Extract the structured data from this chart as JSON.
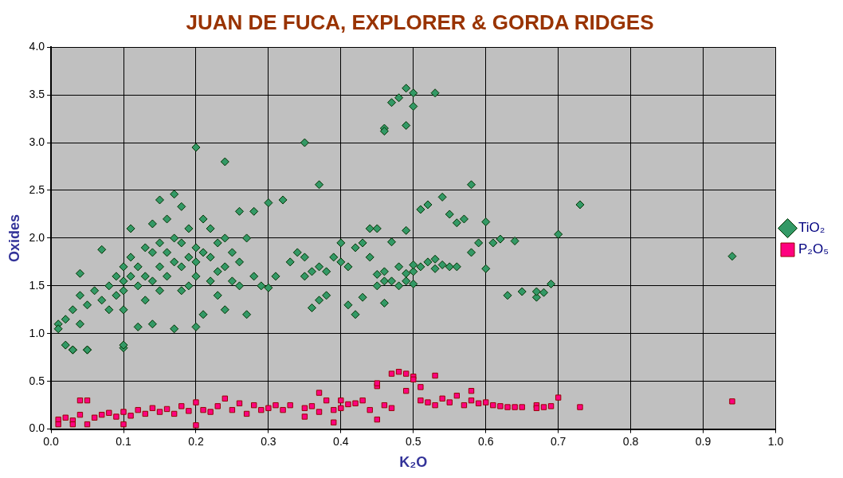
{
  "chart_data": {
    "type": "scatter",
    "title": "JUAN DE FUCA, EXPLORER & GORDA RIDGES",
    "xlabel": "K₂O",
    "ylabel": "Oxides",
    "xlim": [
      0,
      1
    ],
    "ylim": [
      0,
      4
    ],
    "xticks": [
      {
        "value": 0,
        "label": "0.0"
      },
      {
        "value": 0.1,
        "label": "0.1"
      },
      {
        "value": 0.2,
        "label": "0.2"
      },
      {
        "value": 0.3,
        "label": "0.3"
      },
      {
        "value": 0.4,
        "label": "0.4"
      },
      {
        "value": 0.5,
        "label": "0.5"
      },
      {
        "value": 0.6,
        "label": "0.6"
      },
      {
        "value": 0.7,
        "label": "0.7"
      },
      {
        "value": 0.8,
        "label": "0.8"
      },
      {
        "value": 0.9,
        "label": "0.9"
      },
      {
        "value": 1,
        "label": "1.0"
      }
    ],
    "yticks": [
      {
        "value": 0,
        "label": "0.0"
      },
      {
        "value": 0.5,
        "label": "0.5"
      },
      {
        "value": 1,
        "label": "1.0"
      },
      {
        "value": 1.5,
        "label": "1.5"
      },
      {
        "value": 2,
        "label": "2.0"
      },
      {
        "value": 2.5,
        "label": "2.5"
      },
      {
        "value": 3,
        "label": "3.0"
      },
      {
        "value": 3.5,
        "label": "3.5"
      },
      {
        "value": 4,
        "label": "4.0"
      }
    ],
    "grid": true,
    "legend": "right",
    "series": [
      {
        "name": "TiO₂",
        "color": "#339966",
        "marker": "diamond",
        "x": [
          0.01,
          0.01,
          0.02,
          0.02,
          0.03,
          0.03,
          0.04,
          0.04,
          0.05,
          0.05,
          0.04,
          0.06,
          0.07,
          0.07,
          0.08,
          0.08,
          0.09,
          0.09,
          0.1,
          0.1,
          0.1,
          0.1,
          0.1,
          0.11,
          0.11,
          0.11,
          0.12,
          0.12,
          0.12,
          0.13,
          0.13,
          0.13,
          0.14,
          0.14,
          0.14,
          0.14,
          0.15,
          0.15,
          0.15,
          0.15,
          0.16,
          0.16,
          0.16,
          0.17,
          0.17,
          0.17,
          0.17,
          0.18,
          0.18,
          0.18,
          0.18,
          0.19,
          0.19,
          0.19,
          0.2,
          0.2,
          0.2,
          0.2,
          0.21,
          0.21,
          0.21,
          0.22,
          0.22,
          0.22,
          0.23,
          0.23,
          0.23,
          0.24,
          0.24,
          0.24,
          0.25,
          0.25,
          0.26,
          0.26,
          0.26,
          0.27,
          0.27,
          0.28,
          0.28,
          0.29,
          0.3,
          0.3,
          0.31,
          0.32,
          0.33,
          0.34,
          0.35,
          0.35,
          0.36,
          0.36,
          0.37,
          0.37,
          0.38,
          0.38,
          0.39,
          0.4,
          0.4,
          0.41,
          0.41,
          0.42,
          0.42,
          0.43,
          0.43,
          0.44,
          0.44,
          0.45,
          0.45,
          0.46,
          0.46,
          0.46,
          0.47,
          0.47,
          0.48,
          0.48,
          0.49,
          0.49,
          0.49,
          0.5,
          0.5,
          0.5,
          0.51,
          0.51,
          0.52,
          0.52,
          0.53,
          0.53,
          0.54,
          0.54,
          0.55,
          0.55,
          0.56,
          0.56,
          0.57,
          0.58,
          0.58,
          0.59,
          0.6,
          0.6,
          0.61,
          0.62,
          0.63,
          0.64,
          0.65,
          0.67,
          0.67,
          0.68,
          0.69,
          0.7,
          0.73,
          0.94,
          0.2,
          0.24,
          0.35,
          0.37,
          0.47,
          0.48,
          0.5,
          0.53,
          0.1,
          0.05,
          0.03,
          0.46,
          0.46,
          0.49,
          0.49,
          0.5,
          0.45
        ],
        "values": [
          1.1,
          1.05,
          1.15,
          0.88,
          1.25,
          0.83,
          1.63,
          1.1,
          0.83,
          1.3,
          1.4,
          1.45,
          1.88,
          1.35,
          1.5,
          1.25,
          1.6,
          1.4,
          0.85,
          1.7,
          1.55,
          1.45,
          1.25,
          1.8,
          1.6,
          2.1,
          1.7,
          1.5,
          1.07,
          1.9,
          1.6,
          1.35,
          2.15,
          1.85,
          1.55,
          1.1,
          2.4,
          1.95,
          1.7,
          1.45,
          2.2,
          1.85,
          1.6,
          2.46,
          2.0,
          1.75,
          1.05,
          2.33,
          1.95,
          1.7,
          1.45,
          2.1,
          1.8,
          1.5,
          1.9,
          1.75,
          1.6,
          1.07,
          2.2,
          1.85,
          1.2,
          2.1,
          1.8,
          1.55,
          1.95,
          1.65,
          1.4,
          2.0,
          1.7,
          1.25,
          1.85,
          1.55,
          2.28,
          1.75,
          1.5,
          2.0,
          1.2,
          2.28,
          1.6,
          1.5,
          2.37,
          1.48,
          1.6,
          2.4,
          1.75,
          1.85,
          1.8,
          1.6,
          1.65,
          1.27,
          1.7,
          1.35,
          1.65,
          1.4,
          1.8,
          1.95,
          1.75,
          1.7,
          1.3,
          1.9,
          1.2,
          1.95,
          1.38,
          1.8,
          2.1,
          1.5,
          1.62,
          1.55,
          1.65,
          1.32,
          1.55,
          1.96,
          1.5,
          1.7,
          1.55,
          2.08,
          1.63,
          1.65,
          1.72,
          1.52,
          2.3,
          1.7,
          2.35,
          1.75,
          1.78,
          1.68,
          2.43,
          1.72,
          2.25,
          1.7,
          2.16,
          1.7,
          2.2,
          2.56,
          1.85,
          1.95,
          2.17,
          1.68,
          1.95,
          1.99,
          1.4,
          1.97,
          1.44,
          1.38,
          1.44,
          1.43,
          1.52,
          2.04,
          2.35,
          1.81,
          2.95,
          2.8,
          3.0,
          2.56,
          3.42,
          3.47,
          3.52,
          3.52,
          0.88,
          0.83,
          0.83,
          3.15,
          3.12,
          3.57,
          3.18,
          3.38,
          2.1
        ]
      },
      {
        "name": "P₂O₅",
        "color": "#ff0080",
        "marker": "square",
        "x": [
          0.01,
          0.01,
          0.02,
          0.03,
          0.03,
          0.04,
          0.04,
          0.05,
          0.05,
          0.06,
          0.07,
          0.08,
          0.09,
          0.1,
          0.1,
          0.11,
          0.12,
          0.13,
          0.14,
          0.15,
          0.16,
          0.17,
          0.18,
          0.19,
          0.2,
          0.2,
          0.21,
          0.22,
          0.23,
          0.24,
          0.25,
          0.26,
          0.27,
          0.28,
          0.29,
          0.3,
          0.31,
          0.32,
          0.33,
          0.35,
          0.35,
          0.36,
          0.37,
          0.37,
          0.38,
          0.39,
          0.4,
          0.4,
          0.41,
          0.42,
          0.43,
          0.44,
          0.45,
          0.45,
          0.46,
          0.47,
          0.48,
          0.49,
          0.49,
          0.5,
          0.5,
          0.51,
          0.51,
          0.52,
          0.53,
          0.53,
          0.54,
          0.55,
          0.56,
          0.57,
          0.58,
          0.58,
          0.59,
          0.6,
          0.61,
          0.62,
          0.63,
          0.64,
          0.65,
          0.67,
          0.67,
          0.68,
          0.69,
          0.7,
          0.73,
          0.94,
          0.39,
          0.45,
          0.47
        ],
        "values": [
          0.1,
          0.05,
          0.12,
          0.09,
          0.05,
          0.3,
          0.15,
          0.3,
          0.05,
          0.12,
          0.15,
          0.17,
          0.13,
          0.05,
          0.18,
          0.14,
          0.2,
          0.16,
          0.22,
          0.18,
          0.21,
          0.16,
          0.24,
          0.19,
          0.28,
          0.04,
          0.2,
          0.18,
          0.24,
          0.32,
          0.2,
          0.27,
          0.16,
          0.25,
          0.2,
          0.22,
          0.25,
          0.2,
          0.25,
          0.13,
          0.22,
          0.24,
          0.38,
          0.18,
          0.3,
          0.07,
          0.22,
          0.3,
          0.26,
          0.27,
          0.3,
          0.2,
          0.45,
          0.48,
          0.25,
          0.58,
          0.6,
          0.4,
          0.58,
          0.55,
          0.52,
          0.44,
          0.3,
          0.28,
          0.56,
          0.25,
          0.32,
          0.28,
          0.35,
          0.25,
          0.4,
          0.3,
          0.27,
          0.28,
          0.25,
          0.24,
          0.23,
          0.23,
          0.23,
          0.25,
          0.22,
          0.23,
          0.24,
          0.33,
          0.23,
          0.29,
          0.2,
          0.1,
          0.22
        ]
      }
    ]
  }
}
